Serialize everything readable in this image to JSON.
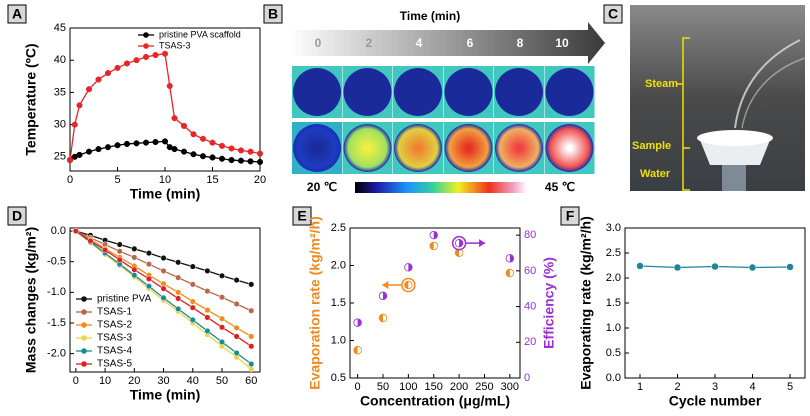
{
  "panel_labels": [
    "A",
    "B",
    "C",
    "D",
    "E",
    "F"
  ],
  "thermal": {
    "title": "Time (min)",
    "times": [
      0,
      2,
      4,
      6,
      8,
      10
    ],
    "scale_low": "20 ℃",
    "scale_high": "45 ℃"
  },
  "photo": {
    "labels": [
      "Steam",
      "Sample",
      "Water"
    ]
  },
  "chart_data": [
    {
      "type": "line",
      "xlabel": "Time (min)",
      "ylabel": "Temperature (ºC)",
      "x": [
        0,
        0.5,
        1,
        2,
        3,
        4,
        5,
        6,
        7,
        8,
        9,
        10,
        10.5,
        11,
        12,
        13,
        14,
        15,
        16,
        17,
        18,
        19,
        20
      ],
      "series": [
        {
          "name": "pristine PVA scaffold",
          "color": "#000000",
          "values": [
            24.5,
            25,
            25.3,
            25.8,
            26.2,
            26.5,
            26.8,
            27,
            27.1,
            27.2,
            27.3,
            27.4,
            26.5,
            26.2,
            25.8,
            25.4,
            25.1,
            24.9,
            24.7,
            24.5,
            24.4,
            24.3,
            24.2
          ]
        },
        {
          "name": "TSAS-3",
          "color": "#e8252a",
          "values": [
            24.5,
            30,
            33,
            35.5,
            37,
            38,
            38.8,
            39.5,
            40,
            40.5,
            40.8,
            41,
            36,
            31,
            29.8,
            28.5,
            27.8,
            27.2,
            26.7,
            26.3,
            26,
            25.8,
            25.5
          ]
        }
      ],
      "xlim": [
        0,
        20
      ],
      "xticks": [
        0,
        5,
        10,
        15,
        20
      ],
      "ylim": [
        22.8,
        45
      ],
      "yticks": [
        25,
        30,
        35,
        40,
        45
      ],
      "legend": "upper right"
    },
    {
      "type": "line",
      "xlabel": "Time (min)",
      "ylabel": "Mass changes (kg/m²)",
      "x": [
        0,
        5,
        10,
        15,
        20,
        25,
        30,
        35,
        40,
        45,
        50,
        55,
        60
      ],
      "series": [
        {
          "name": "pristine PVA",
          "color": "#111111",
          "values": [
            0,
            -0.07,
            -0.15,
            -0.22,
            -0.29,
            -0.36,
            -0.44,
            -0.51,
            -0.58,
            -0.65,
            -0.73,
            -0.8,
            -0.87
          ]
        },
        {
          "name": "TSAS-1",
          "color": "#b5694a",
          "values": [
            0,
            -0.11,
            -0.22,
            -0.33,
            -0.43,
            -0.54,
            -0.65,
            -0.76,
            -0.87,
            -0.98,
            -1.08,
            -1.19,
            -1.3
          ]
        },
        {
          "name": "TSAS-2",
          "color": "#f28a1c",
          "values": [
            0,
            -0.14,
            -0.29,
            -0.43,
            -0.57,
            -0.72,
            -0.86,
            -1,
            -1.15,
            -1.29,
            -1.43,
            -1.58,
            -1.72
          ]
        },
        {
          "name": "TSAS-3",
          "color": "#e6d64a",
          "values": [
            0,
            -0.19,
            -0.38,
            -0.56,
            -0.75,
            -0.94,
            -1.13,
            -1.31,
            -1.5,
            -1.69,
            -1.88,
            -2.06,
            -2.25
          ]
        },
        {
          "name": "TSAS-4",
          "color": "#1c8a8e",
          "values": [
            0,
            -0.18,
            -0.36,
            -0.54,
            -0.72,
            -0.9,
            -1.09,
            -1.27,
            -1.45,
            -1.63,
            -1.81,
            -1.99,
            -2.17
          ]
        },
        {
          "name": "TSAS-5",
          "color": "#e02020",
          "values": [
            0,
            -0.16,
            -0.31,
            -0.47,
            -0.63,
            -0.78,
            -0.94,
            -1.1,
            -1.25,
            -1.41,
            -1.57,
            -1.72,
            -1.88
          ]
        }
      ],
      "xlim": [
        -2,
        63
      ],
      "xticks": [
        0,
        10,
        20,
        30,
        40,
        50,
        60
      ],
      "ylim": [
        -2.3,
        0.05
      ],
      "yticks": [
        {
          "value": 0,
          "label": "0.0"
        },
        -0.5,
        {
          "value": -1,
          "label": "-1.0"
        },
        -1.5,
        {
          "value": -2,
          "label": "-2.0"
        }
      ],
      "legend": "lower left"
    },
    {
      "type": "scatter",
      "xlabel": "Concentration (μg/mL)",
      "ylabel": "Evaporation rate (kg/m²/h)",
      "y2label": "Efficiency (%)",
      "x": [
        0,
        50,
        100,
        150,
        200,
        300
      ],
      "series": [
        {
          "color": "#f0891f",
          "values": [
            0.87,
            1.3,
            1.74,
            2.26,
            2.17,
            1.9
          ]
        },
        {
          "color": "#9a2fd6",
          "axis": "y2",
          "values": [
            31,
            46,
            62,
            80,
            75.5,
            67
          ]
        }
      ],
      "xlim": [
        -15,
        320
      ],
      "xticks": [
        0,
        50,
        100,
        150,
        200,
        250,
        300
      ],
      "ylim": [
        0.5,
        2.5
      ],
      "yticks": [
        0.5,
        {
          "value": 1,
          "label": "1.0"
        },
        1.5,
        {
          "value": 2,
          "label": "2.0"
        },
        2.5
      ],
      "y2lim": [
        0,
        84
      ],
      "y2ticks": [
        0,
        20,
        40,
        60,
        80
      ]
    },
    {
      "type": "line",
      "xlabel": "Cycle number",
      "ylabel": "Evaporating rate (kg/m²/h)",
      "x": [
        1,
        2,
        3,
        4,
        5
      ],
      "series": [
        {
          "color": "#1b8797",
          "values": [
            2.24,
            2.21,
            2.23,
            2.21,
            2.22
          ]
        }
      ],
      "xlim": [
        0.6,
        5.4
      ],
      "xticks": [
        1,
        2,
        3,
        4,
        5
      ],
      "ylim": [
        0,
        3
      ],
      "yticks": [
        {
          "value": 0,
          "label": "0.0"
        },
        0.5,
        {
          "value": 1,
          "label": "1.0"
        },
        1.5,
        {
          "value": 2,
          "label": "2.0"
        },
        2.5,
        {
          "value": 3,
          "label": "3.0"
        }
      ]
    }
  ]
}
